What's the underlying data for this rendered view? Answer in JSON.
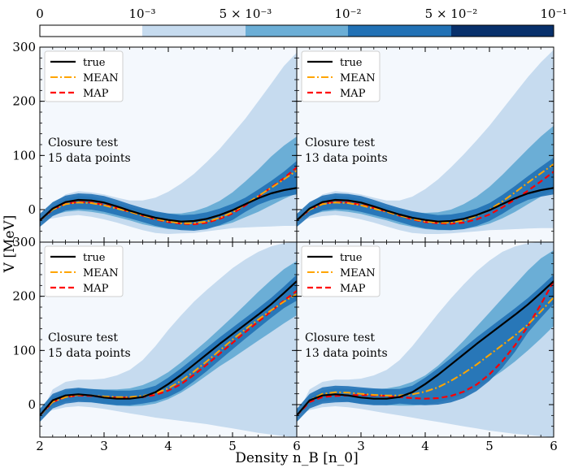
{
  "chart_data": {
    "type": "line",
    "title": "",
    "xlabel": "Density n_B [n_0]",
    "ylabel": "V [MeV]",
    "xlim": [
      2,
      6
    ],
    "ylim": [
      -60,
      300
    ],
    "x_ticks": [
      2,
      3,
      4,
      5,
      6
    ],
    "y_ticks": [
      0,
      100,
      200,
      300
    ],
    "colorbar": {
      "tick_labels": [
        "0",
        "10⁻³",
        "5 × 10⁻³",
        "10⁻²",
        "5 × 10⁻²",
        "10⁻¹"
      ],
      "colors": [
        "#ffffff",
        "#c6dbef",
        "#6baed6",
        "#2171b5",
        "#08306b"
      ]
    },
    "band_colors": {
      "outer": "#c6dbef",
      "middle": "#6baed6",
      "inner": "#2171b5"
    },
    "legend": [
      {
        "label": "true",
        "color": "#000000",
        "style": "solid"
      },
      {
        "label": "MEAN",
        "color": "#ffa500",
        "style": "dashdot"
      },
      {
        "label": "MAP",
        "color": "#ff0000",
        "style": "dashed"
      }
    ],
    "panels": [
      {
        "id": "top-left",
        "annotation_line1": "Closure test",
        "annotation_line2": "15 data points",
        "x": [
          2,
          2.2,
          2.4,
          2.6,
          2.8,
          3,
          3.2,
          3.4,
          3.6,
          3.8,
          4,
          4.2,
          4.4,
          4.6,
          4.8,
          5,
          5.2,
          5.4,
          5.6,
          5.8,
          6
        ],
        "series": [
          {
            "name": "true",
            "values": [
              -20,
              2,
              14,
              18,
              17,
              13,
              6,
              -2,
              -9,
              -15,
              -19,
              -22,
              -21,
              -17,
              -10,
              -1,
              10,
              21,
              30,
              36,
              40
            ]
          },
          {
            "name": "MEAN",
            "values": [
              -20,
              0,
              10,
              13,
              12,
              8,
              2,
              -4,
              -11,
              -17,
              -22,
              -25,
              -25,
              -22,
              -15,
              -5,
              10,
              25,
              40,
              56,
              72
            ]
          },
          {
            "name": "MAP",
            "values": [
              -20,
              0,
              11,
              14,
              13,
              9,
              3,
              -4,
              -11,
              -18,
              -23,
              -26,
              -27,
              -24,
              -17,
              -7,
              8,
              24,
              41,
              58,
              78
            ]
          }
        ],
        "band_outer_lower": [
          -20,
          -16,
          -12,
          -10,
          -13,
          -18,
          -24,
          -31,
          -38,
          -43,
          -45,
          -44,
          -43,
          -40,
          -37,
          -34,
          -33,
          -32,
          -31,
          -30,
          -30
        ],
        "band_outer_upper": [
          -20,
          10,
          28,
          34,
          32,
          28,
          22,
          17,
          17,
          22,
          33,
          48,
          66,
          88,
          112,
          140,
          168,
          200,
          232,
          265,
          290
        ],
        "band_mid_lower": [
          -20,
          -10,
          -4,
          -2,
          -4,
          -8,
          -14,
          -20,
          -27,
          -32,
          -36,
          -37,
          -36,
          -34,
          -30,
          -24,
          -14,
          -4,
          8,
          20,
          30
        ],
        "band_mid_upper": [
          -20,
          6,
          20,
          26,
          24,
          19,
          12,
          5,
          -1,
          -5,
          -7,
          -7,
          -3,
          5,
          16,
          32,
          52,
          74,
          98,
          118,
          135
        ]
      },
      {
        "id": "top-right",
        "annotation_line1": "Closure test",
        "annotation_line2": "13 data points",
        "x": [
          2,
          2.2,
          2.4,
          2.6,
          2.8,
          3,
          3.2,
          3.4,
          3.6,
          3.8,
          4,
          4.2,
          4.4,
          4.6,
          4.8,
          5,
          5.2,
          5.4,
          5.6,
          5.8,
          6
        ],
        "series": [
          {
            "name": "true",
            "values": [
              -20,
              2,
              14,
              18,
              17,
              13,
              6,
              -2,
              -9,
              -15,
              -19,
              -22,
              -21,
              -17,
              -10,
              -1,
              10,
              21,
              30,
              36,
              40
            ]
          },
          {
            "name": "MEAN",
            "values": [
              -20,
              0,
              10,
              13,
              12,
              8,
              2,
              -4,
              -11,
              -17,
              -22,
              -24,
              -24,
              -20,
              -12,
              0,
              15,
              32,
              50,
              67,
              84
            ]
          },
          {
            "name": "MAP",
            "values": [
              -20,
              0,
              11,
              14,
              13,
              9,
              3,
              -4,
              -11,
              -18,
              -23,
              -25,
              -26,
              -24,
              -18,
              -9,
              4,
              19,
              35,
              52,
              70
            ]
          }
        ],
        "band_outer_lower": [
          -20,
          -16,
          -12,
          -10,
          -13,
          -18,
          -24,
          -31,
          -38,
          -43,
          -45,
          -45,
          -44,
          -42,
          -40,
          -38,
          -37,
          -36,
          -35,
          -34,
          -34
        ],
        "band_outer_upper": [
          -20,
          10,
          28,
          34,
          32,
          28,
          22,
          17,
          17,
          24,
          38,
          56,
          78,
          102,
          128,
          155,
          185,
          215,
          245,
          272,
          295
        ],
        "band_mid_lower": [
          -20,
          -10,
          -4,
          -2,
          -4,
          -8,
          -14,
          -20,
          -27,
          -32,
          -36,
          -38,
          -38,
          -36,
          -32,
          -26,
          -16,
          -4,
          10,
          24,
          36
        ],
        "band_mid_upper": [
          -20,
          6,
          20,
          26,
          24,
          19,
          12,
          5,
          -1,
          -5,
          -6,
          -5,
          0,
          10,
          24,
          42,
          64,
          88,
          112,
          135,
          155
        ]
      },
      {
        "id": "bottom-left",
        "annotation_line1": "Closure test",
        "annotation_line2": "15 data points",
        "x": [
          2,
          2.2,
          2.4,
          2.6,
          2.8,
          3,
          3.2,
          3.4,
          3.6,
          3.8,
          4,
          4.2,
          4.4,
          4.6,
          4.8,
          5,
          5.2,
          5.4,
          5.6,
          5.8,
          6
        ],
        "series": [
          {
            "name": "true",
            "values": [
              -20,
              8,
              17,
              19,
              17,
              13,
              11,
              11,
              14,
              23,
              38,
              55,
              74,
              93,
              112,
              130,
              148,
              166,
              185,
              206,
              228
            ]
          },
          {
            "name": "MEAN",
            "values": [
              -20,
              5,
              14,
              18,
              17,
              15,
              14,
              14,
              16,
              21,
              30,
              44,
              61,
              80,
              100,
              120,
              139,
              157,
              174,
              190,
              204
            ]
          },
          {
            "name": "MAP",
            "values": [
              -20,
              5,
              14,
              17,
              16,
              14,
              13,
              13,
              14,
              18,
              26,
              38,
              55,
              74,
              94,
              114,
              134,
              153,
              172,
              192,
              210
            ]
          }
        ],
        "band_outer_lower": [
          -20,
          -10,
          -5,
          -3,
          -5,
          -8,
          -12,
          -16,
          -20,
          -24,
          -27,
          -30,
          -33,
          -36,
          -40,
          -44,
          -48,
          -52,
          -55,
          -58,
          -60
        ],
        "band_outer_upper": [
          -20,
          28,
          42,
          46,
          46,
          48,
          54,
          64,
          82,
          108,
          138,
          165,
          190,
          212,
          232,
          252,
          268,
          282,
          292,
          298,
          300
        ],
        "band_mid_lower": [
          -20,
          -2,
          6,
          8,
          5,
          1,
          -2,
          -3,
          -2,
          2,
          10,
          22,
          37,
          54,
          71,
          86,
          102,
          118,
          134,
          150,
          165
        ],
        "band_mid_upper": [
          -20,
          14,
          26,
          30,
          29,
          28,
          28,
          30,
          36,
          46,
          60,
          78,
          98,
          118,
          140,
          162,
          185,
          208,
          230,
          250,
          265
        ]
      },
      {
        "id": "bottom-right",
        "annotation_line1": "Closure test",
        "annotation_line2": "13 data points",
        "x": [
          2,
          2.2,
          2.4,
          2.6,
          2.8,
          3,
          3.2,
          3.4,
          3.6,
          3.8,
          4,
          4.2,
          4.4,
          4.6,
          4.8,
          5,
          5.2,
          5.4,
          5.6,
          5.8,
          6
        ],
        "series": [
          {
            "name": "true",
            "values": [
              -20,
              8,
              17,
              19,
              17,
              13,
              11,
              11,
              14,
              23,
              38,
              55,
              74,
              93,
              112,
              130,
              148,
              166,
              185,
              206,
              228
            ]
          },
          {
            "name": "MEAN",
            "values": [
              -20,
              8,
              20,
              23,
              22,
              20,
              18,
              17,
              17,
              19,
              24,
              32,
              44,
              58,
              74,
              92,
              110,
              128,
              148,
              172,
              198
            ]
          },
          {
            "name": "MAP",
            "values": [
              -20,
              5,
              14,
              16,
              17,
              18,
              17,
              16,
              14,
              12,
              11,
              12,
              16,
              24,
              37,
              56,
              80,
              110,
              145,
              185,
              228
            ]
          }
        ],
        "band_outer_lower": [
          -20,
          -10,
          -5,
          -3,
          -5,
          -8,
          -12,
          -16,
          -20,
          -24,
          -28,
          -32,
          -36,
          -40,
          -44,
          -48,
          -51,
          -54,
          -56,
          -58,
          -60
        ],
        "band_outer_upper": [
          -20,
          28,
          42,
          46,
          46,
          48,
          54,
          64,
          82,
          108,
          138,
          168,
          196,
          222,
          246,
          266,
          282,
          292,
          298,
          300,
          300
        ],
        "band_mid_lower": [
          -20,
          -2,
          6,
          8,
          5,
          2,
          0,
          -1,
          -2,
          -2,
          0,
          4,
          10,
          20,
          32,
          46,
          62,
          80,
          100,
          122,
          145
        ],
        "band_mid_upper": [
          -20,
          14,
          26,
          30,
          29,
          28,
          28,
          30,
          34,
          42,
          54,
          72,
          94,
          118,
          144,
          170,
          196,
          222,
          248,
          270,
          285
        ]
      }
    ]
  }
}
